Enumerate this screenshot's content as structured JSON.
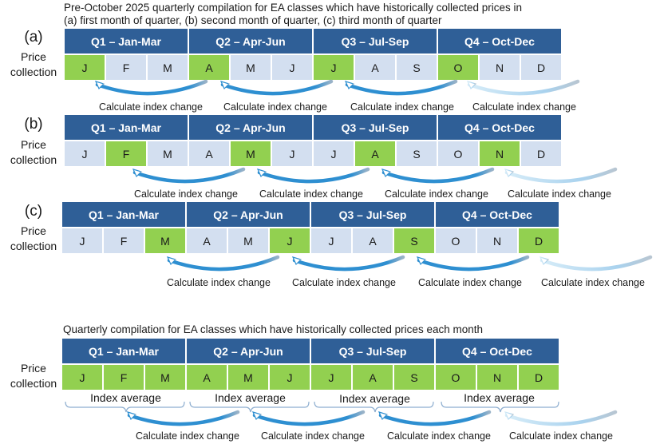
{
  "titles": {
    "pre_line1": "Pre-October 2025 quarterly compilation for EA classes which have historically collected prices in",
    "pre_line2": "(a) first month of quarter, (b) second month of quarter, (c) third month of quarter",
    "monthly": "Quarterly compilation for EA classes which have historically collected prices each month"
  },
  "row_label": {
    "line1": "Price",
    "line2": "collection"
  },
  "quarters": [
    "Q1 – Jan-Mar",
    "Q2 – Apr-Jun",
    "Q3 – Jul-Sep",
    "Q4 – Oct-Dec"
  ],
  "months": [
    "J",
    "F",
    "M",
    "A",
    "M",
    "J",
    "J",
    "A",
    "S",
    "O",
    "N",
    "D"
  ],
  "panels": {
    "a": {
      "label": "(a)",
      "highlighted_months": [
        0,
        3,
        6,
        9
      ]
    },
    "b": {
      "label": "(b)",
      "highlighted_months": [
        1,
        4,
        7,
        10
      ]
    },
    "c": {
      "label": "(c)",
      "highlighted_months": [
        2,
        5,
        8,
        11
      ]
    },
    "monthly": {
      "highlighted_months": [
        0,
        1,
        2,
        3,
        4,
        5,
        6,
        7,
        8,
        9,
        10,
        11
      ]
    }
  },
  "calc_label": "Calculate index change",
  "avg_label": "Index average",
  "colors": {
    "header_blue": "#2f5f97",
    "collected_green": "#92d050",
    "not_collected": "#d3dff0",
    "arrow_blue": "#2e8fd1"
  }
}
